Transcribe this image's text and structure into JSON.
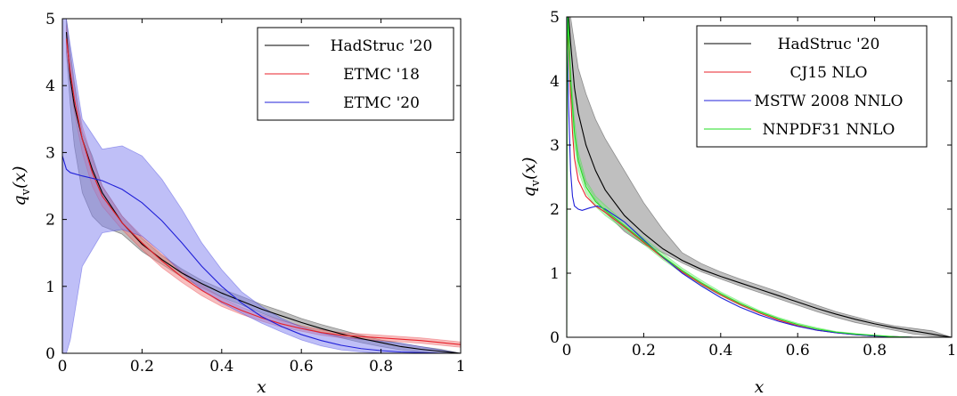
{
  "chart_data": [
    {
      "type": "line",
      "ylabel": "q_v(x)",
      "xlabel": "x",
      "xlim": [
        0,
        1
      ],
      "ylim": [
        0,
        5
      ],
      "xticks": [
        "0",
        "0.2",
        "0.4",
        "0.6",
        "0.8",
        "1"
      ],
      "yticks": [
        "0",
        "1",
        "2",
        "3",
        "4",
        "5"
      ],
      "legend_position": "top-right",
      "series": [
        {
          "name": "HadStruc '20",
          "color": "#000000",
          "band_color": "#808080",
          "x": [
            0.01,
            0.02,
            0.03,
            0.05,
            0.075,
            0.1,
            0.15,
            0.2,
            0.25,
            0.3,
            0.35,
            0.4,
            0.45,
            0.5,
            0.55,
            0.6,
            0.65,
            0.7,
            0.75,
            0.8,
            0.85,
            0.9,
            0.95,
            1.0
          ],
          "y": [
            4.8,
            4.1,
            3.7,
            3.2,
            2.75,
            2.4,
            1.95,
            1.63,
            1.4,
            1.2,
            1.04,
            0.9,
            0.78,
            0.66,
            0.56,
            0.46,
            0.37,
            0.29,
            0.22,
            0.16,
            0.1,
            0.06,
            0.03,
            0.0
          ],
          "upper": [
            5.0,
            4.5,
            4.05,
            3.3,
            2.95,
            2.5,
            2.05,
            1.72,
            1.46,
            1.26,
            1.09,
            0.96,
            0.85,
            0.73,
            0.63,
            0.52,
            0.43,
            0.35,
            0.27,
            0.2,
            0.15,
            0.1,
            0.06,
            0.0
          ],
          "lower": [
            4.5,
            3.7,
            3.1,
            2.4,
            2.05,
            1.9,
            1.78,
            1.52,
            1.33,
            1.14,
            0.98,
            0.84,
            0.72,
            0.6,
            0.49,
            0.4,
            0.31,
            0.23,
            0.16,
            0.1,
            0.05,
            0.02,
            0.0,
            0.0
          ]
        },
        {
          "name": "ETMC '18",
          "color": "#e8202a",
          "band_color": "#f08080",
          "x": [
            0.01,
            0.02,
            0.03,
            0.05,
            0.075,
            0.1,
            0.15,
            0.2,
            0.25,
            0.3,
            0.35,
            0.4,
            0.45,
            0.5,
            0.55,
            0.6,
            0.65,
            0.7,
            0.75,
            0.8,
            0.85,
            0.9,
            0.95,
            1.0
          ],
          "y": [
            4.7,
            4.2,
            3.8,
            3.2,
            2.7,
            2.35,
            1.95,
            1.65,
            1.38,
            1.14,
            0.94,
            0.77,
            0.64,
            0.53,
            0.44,
            0.37,
            0.31,
            0.27,
            0.25,
            0.23,
            0.21,
            0.19,
            0.16,
            0.13
          ],
          "upper": [
            4.9,
            4.4,
            4.0,
            3.4,
            2.9,
            2.5,
            2.05,
            1.75,
            1.48,
            1.23,
            1.02,
            0.83,
            0.69,
            0.58,
            0.49,
            0.41,
            0.35,
            0.31,
            0.29,
            0.27,
            0.25,
            0.23,
            0.2,
            0.17
          ],
          "lower": [
            4.5,
            4.0,
            3.6,
            3.0,
            2.5,
            2.2,
            1.85,
            1.55,
            1.28,
            1.06,
            0.86,
            0.7,
            0.58,
            0.48,
            0.39,
            0.33,
            0.27,
            0.23,
            0.21,
            0.19,
            0.17,
            0.15,
            0.12,
            0.09
          ]
        },
        {
          "name": "ETMC '20",
          "color": "#2020d8",
          "band_color": "#8080f0",
          "x": [
            0.0,
            0.01,
            0.02,
            0.05,
            0.1,
            0.15,
            0.2,
            0.25,
            0.3,
            0.35,
            0.4,
            0.45,
            0.5,
            0.55,
            0.6,
            0.65,
            0.7,
            0.75,
            0.8,
            0.85,
            0.9,
            0.95,
            1.0
          ],
          "y": [
            2.95,
            2.75,
            2.7,
            2.65,
            2.58,
            2.45,
            2.25,
            1.98,
            1.65,
            1.3,
            1.0,
            0.75,
            0.55,
            0.4,
            0.28,
            0.19,
            0.12,
            0.07,
            0.04,
            0.02,
            0.01,
            0.0,
            0.0
          ],
          "upper": [
            5.0,
            5.0,
            4.6,
            3.5,
            3.05,
            3.1,
            2.95,
            2.6,
            2.15,
            1.65,
            1.25,
            0.92,
            0.7,
            0.52,
            0.39,
            0.3,
            0.25,
            0.21,
            0.18,
            0.15,
            0.1,
            0.05,
            0.0
          ],
          "lower": [
            0.0,
            0.0,
            0.2,
            1.3,
            1.8,
            1.85,
            1.75,
            1.5,
            1.2,
            0.95,
            0.75,
            0.6,
            0.45,
            0.32,
            0.2,
            0.11,
            0.05,
            0.02,
            0.0,
            0.0,
            0.0,
            0.0,
            0.0
          ]
        }
      ]
    },
    {
      "type": "line",
      "ylabel": "q_v(x)",
      "xlabel": "x",
      "xlim": [
        0,
        1
      ],
      "ylim": [
        0,
        5
      ],
      "xticks": [
        "0",
        "0.2",
        "0.4",
        "0.6",
        "0.8",
        "1"
      ],
      "yticks": [
        "0",
        "1",
        "2",
        "3",
        "4",
        "5"
      ],
      "legend_position": "top-right",
      "series": [
        {
          "name": "HadStruc '20",
          "color": "#000000",
          "band_color": "#808080",
          "x": [
            0.005,
            0.01,
            0.02,
            0.03,
            0.05,
            0.075,
            0.1,
            0.15,
            0.2,
            0.25,
            0.3,
            0.35,
            0.4,
            0.45,
            0.5,
            0.55,
            0.6,
            0.65,
            0.7,
            0.75,
            0.8,
            0.85,
            0.9,
            0.95,
            1.0
          ],
          "y": [
            5.0,
            4.6,
            3.9,
            3.5,
            3.0,
            2.6,
            2.3,
            1.9,
            1.62,
            1.38,
            1.2,
            1.06,
            0.95,
            0.85,
            0.75,
            0.65,
            0.55,
            0.45,
            0.36,
            0.28,
            0.21,
            0.15,
            0.1,
            0.05,
            0.0
          ],
          "upper": [
            5.0,
            5.0,
            4.6,
            4.2,
            3.8,
            3.4,
            3.1,
            2.6,
            2.1,
            1.68,
            1.32,
            1.15,
            1.02,
            0.91,
            0.81,
            0.71,
            0.6,
            0.5,
            0.4,
            0.32,
            0.24,
            0.18,
            0.14,
            0.1,
            0.0
          ],
          "lower": [
            4.6,
            4.0,
            3.2,
            2.8,
            2.4,
            2.15,
            1.95,
            1.65,
            1.45,
            1.32,
            1.16,
            1.02,
            0.91,
            0.8,
            0.7,
            0.6,
            0.5,
            0.4,
            0.31,
            0.23,
            0.17,
            0.11,
            0.05,
            0.02,
            0.0
          ]
        },
        {
          "name": "CJ15 NLO",
          "color": "#e8202a",
          "band_color": "#f08080",
          "x": [
            0.001,
            0.005,
            0.01,
            0.015,
            0.02,
            0.03,
            0.05,
            0.075,
            0.1,
            0.15,
            0.2,
            0.25,
            0.3,
            0.35,
            0.4,
            0.45,
            0.5,
            0.55,
            0.6,
            0.65,
            0.7,
            0.75,
            0.8,
            0.85,
            0.9,
            0.95,
            1.0
          ],
          "y": [
            5.0,
            4.6,
            3.8,
            3.2,
            2.8,
            2.45,
            2.2,
            2.05,
            1.95,
            1.72,
            1.48,
            1.24,
            1.02,
            0.83,
            0.66,
            0.51,
            0.38,
            0.27,
            0.18,
            0.11,
            0.07,
            0.04,
            0.02,
            0.01,
            0.0,
            0.0,
            0.0
          ]
        },
        {
          "name": "MSTW 2008 NNLO",
          "color": "#2020d8",
          "band_color": "#8080f0",
          "x": [
            0.001,
            0.005,
            0.01,
            0.015,
            0.02,
            0.03,
            0.04,
            0.06,
            0.08,
            0.1,
            0.15,
            0.2,
            0.25,
            0.3,
            0.35,
            0.4,
            0.45,
            0.5,
            0.55,
            0.6,
            0.65,
            0.7,
            0.75,
            0.8,
            0.85,
            0.9,
            0.95,
            1.0
          ],
          "y": [
            5.0,
            3.6,
            2.6,
            2.2,
            2.05,
            2.0,
            1.98,
            2.02,
            2.05,
            2.0,
            1.8,
            1.52,
            1.25,
            1.0,
            0.8,
            0.62,
            0.47,
            0.35,
            0.25,
            0.17,
            0.11,
            0.07,
            0.04,
            0.02,
            0.01,
            0.0,
            0.0,
            0.0
          ]
        },
        {
          "name": "NNPDF31 NNLO",
          "color": "#22dd22",
          "band_color": "#80ee80",
          "x": [
            0.0,
            0.001,
            0.003,
            0.006,
            0.01,
            0.02,
            0.03,
            0.05,
            0.075,
            0.1,
            0.15,
            0.2,
            0.25,
            0.3,
            0.35,
            0.4,
            0.45,
            0.5,
            0.55,
            0.6,
            0.65,
            0.7,
            0.75,
            0.8,
            0.85,
            0.9,
            0.95,
            1.0
          ],
          "y": [
            0.0,
            3.7,
            5.0,
            4.6,
            4.0,
            3.2,
            2.75,
            2.35,
            2.12,
            1.98,
            1.74,
            1.5,
            1.26,
            1.04,
            0.85,
            0.68,
            0.53,
            0.4,
            0.29,
            0.2,
            0.13,
            0.08,
            0.05,
            0.03,
            0.01,
            0.0,
            0.0,
            0.0
          ],
          "upper": [
            0.0,
            3.9,
            5.0,
            4.8,
            4.2,
            3.4,
            2.9,
            2.45,
            2.2,
            2.06,
            1.8,
            1.55,
            1.31,
            1.08,
            0.89,
            0.71,
            0.56,
            0.42,
            0.31,
            0.22,
            0.15,
            0.09,
            0.06,
            0.03,
            0.01,
            0.0,
            0.0,
            0.0
          ],
          "lower": [
            0.0,
            3.5,
            4.8,
            4.4,
            3.8,
            3.0,
            2.6,
            2.25,
            2.04,
            1.9,
            1.68,
            1.45,
            1.21,
            1.0,
            0.81,
            0.65,
            0.5,
            0.38,
            0.27,
            0.18,
            0.11,
            0.07,
            0.04,
            0.02,
            0.01,
            0.0,
            0.0,
            0.0
          ]
        }
      ]
    }
  ]
}
